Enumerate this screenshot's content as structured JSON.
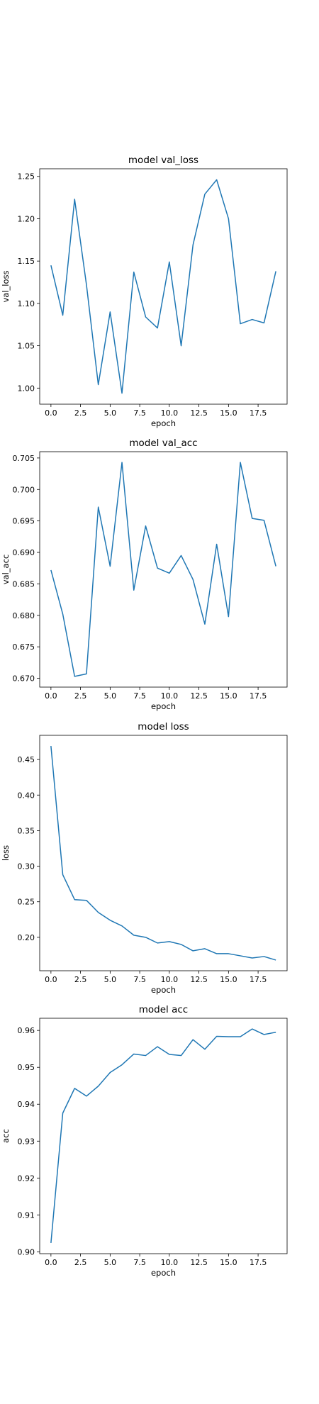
{
  "chart_data": [
    {
      "type": "line",
      "title": "model val_loss",
      "xlabel": "epoch",
      "ylabel": "val_loss",
      "x": [
        0,
        1,
        2,
        3,
        4,
        5,
        6,
        7,
        8,
        9,
        10,
        11,
        12,
        13,
        14,
        15,
        16,
        17,
        18,
        19
      ],
      "series": [
        {
          "values": [
            1.145,
            1.086,
            1.223,
            1.122,
            1.004,
            1.09,
            0.994,
            1.137,
            1.084,
            1.071,
            1.149,
            1.05,
            1.169,
            1.229,
            1.246,
            1.2,
            1.076,
            1.081,
            1.077,
            1.138
          ],
          "color": "#1f77b4"
        }
      ],
      "xlim": [
        -0.95,
        19.95
      ],
      "ylim": [
        0.981,
        1.259
      ],
      "xticks": [
        0,
        2.5,
        5,
        7.5,
        10,
        12.5,
        15,
        17.5
      ],
      "xtick_labels": [
        "0.0",
        "2.5",
        "5.0",
        "7.5",
        "10.0",
        "12.5",
        "15.0",
        "17.5"
      ],
      "yticks": [
        1.0,
        1.05,
        1.1,
        1.15,
        1.2,
        1.25
      ],
      "ytick_labels": [
        "1.00",
        "1.05",
        "1.10",
        "1.15",
        "1.20",
        "1.25"
      ],
      "grid": false
    },
    {
      "type": "line",
      "title": "model val_acc",
      "xlabel": "epoch",
      "ylabel": "val_acc",
      "x": [
        0,
        1,
        2,
        3,
        4,
        5,
        6,
        7,
        8,
        9,
        10,
        11,
        12,
        13,
        14,
        15,
        16,
        17,
        18,
        19
      ],
      "series": [
        {
          "values": [
            0.6872,
            0.6802,
            0.6703,
            0.6707,
            0.6972,
            0.6878,
            0.7043,
            0.684,
            0.6942,
            0.6875,
            0.6867,
            0.6895,
            0.6857,
            0.6786,
            0.6913,
            0.6798,
            0.7043,
            0.6954,
            0.6951,
            0.6878
          ],
          "color": "#1f77b4"
        }
      ],
      "xlim": [
        -0.95,
        19.95
      ],
      "ylim": [
        0.6686,
        0.706
      ],
      "xticks": [
        0,
        2.5,
        5,
        7.5,
        10,
        12.5,
        15,
        17.5
      ],
      "xtick_labels": [
        "0.0",
        "2.5",
        "5.0",
        "7.5",
        "10.0",
        "12.5",
        "15.0",
        "17.5"
      ],
      "yticks": [
        0.67,
        0.675,
        0.68,
        0.685,
        0.69,
        0.695,
        0.7,
        0.705
      ],
      "ytick_labels": [
        "0.670",
        "0.675",
        "0.680",
        "0.685",
        "0.690",
        "0.695",
        "0.700",
        "0.705"
      ],
      "grid": false
    },
    {
      "type": "line",
      "title": "model loss",
      "xlabel": "epoch",
      "ylabel": "loss",
      "x": [
        0,
        1,
        2,
        3,
        4,
        5,
        6,
        7,
        8,
        9,
        10,
        11,
        12,
        13,
        14,
        15,
        16,
        17,
        18,
        19
      ],
      "series": [
        {
          "values": [
            0.469,
            0.288,
            0.253,
            0.252,
            0.235,
            0.224,
            0.216,
            0.203,
            0.2,
            0.192,
            0.194,
            0.19,
            0.181,
            0.184,
            0.177,
            0.177,
            0.174,
            0.171,
            0.173,
            0.168
          ],
          "color": "#1f77b4"
        }
      ],
      "xlim": [
        -0.95,
        19.95
      ],
      "ylim": [
        0.153,
        0.484
      ],
      "xticks": [
        0,
        2.5,
        5,
        7.5,
        10,
        12.5,
        15,
        17.5
      ],
      "xtick_labels": [
        "0.0",
        "2.5",
        "5.0",
        "7.5",
        "10.0",
        "12.5",
        "15.0",
        "17.5"
      ],
      "yticks": [
        0.2,
        0.25,
        0.3,
        0.35,
        0.4,
        0.45
      ],
      "ytick_labels": [
        "0.20",
        "0.25",
        "0.30",
        "0.35",
        "0.40",
        "0.45"
      ],
      "grid": false
    },
    {
      "type": "line",
      "title": "model acc",
      "xlabel": "epoch",
      "ylabel": "acc",
      "x": [
        0,
        1,
        2,
        3,
        4,
        5,
        6,
        7,
        8,
        9,
        10,
        11,
        12,
        13,
        14,
        15,
        16,
        17,
        18,
        19
      ],
      "series": [
        {
          "values": [
            0.9024,
            0.9376,
            0.9443,
            0.9422,
            0.9449,
            0.9486,
            0.9507,
            0.9536,
            0.9532,
            0.9556,
            0.9535,
            0.9532,
            0.9575,
            0.9549,
            0.9584,
            0.9583,
            0.9583,
            0.9604,
            0.9589,
            0.9595
          ],
          "color": "#1f77b4"
        }
      ],
      "xlim": [
        -0.95,
        19.95
      ],
      "ylim": [
        0.8995,
        0.9633
      ],
      "xticks": [
        0,
        2.5,
        5,
        7.5,
        10,
        12.5,
        15,
        17.5
      ],
      "xtick_labels": [
        "0.0",
        "2.5",
        "5.0",
        "7.5",
        "10.0",
        "12.5",
        "15.0",
        "17.5"
      ],
      "yticks": [
        0.9,
        0.91,
        0.92,
        0.93,
        0.94,
        0.95,
        0.96
      ],
      "ytick_labels": [
        "0.90",
        "0.91",
        "0.92",
        "0.93",
        "0.94",
        "0.95",
        "0.96"
      ],
      "grid": false
    }
  ]
}
